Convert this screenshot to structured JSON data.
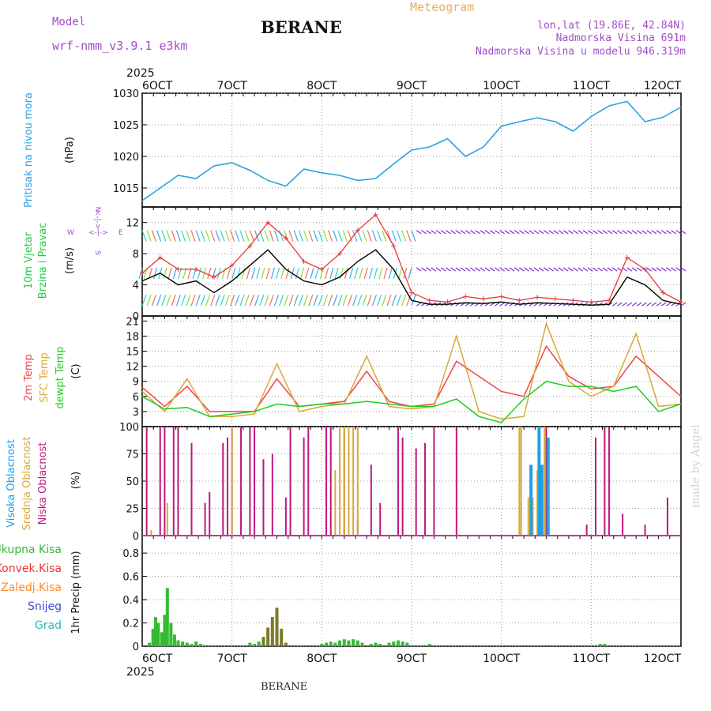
{
  "header": {
    "model_label": "Model",
    "model_name": "wrf-nmm_v3.9.1 e3km",
    "title": "BERANE",
    "product": "Meteogram",
    "lonlat": "lon,lat (19.86E, 42.84N)",
    "altitude": "Nadmorska Visina 691m",
    "model_altitude": "Nadmorska Visina u modelu 946.319m",
    "footer_station": "BERANE",
    "watermark": "made by Angel"
  },
  "colors": {
    "pressure": "#29a3e0",
    "temp2m": "#f04545",
    "sfc": "#d9a838",
    "dew": "#22cc22",
    "high_cloud": "#1fa0e6",
    "mid_cloud": "#d9a838",
    "low_cloud": "#c0167f",
    "precip": "#33bb33",
    "snow_label": "#4444dd",
    "grad_label": "#22bbbb",
    "konv_label": "#ee3333",
    "zaledj_label": "#ff8822",
    "wind_label": "#22cc44",
    "meta": "#a24ccc",
    "product": "#e0b066"
  },
  "time_axis": {
    "year": "2025",
    "labels": [
      "6OCT",
      "7OCT",
      "8OCT",
      "9OCT",
      "10OCT",
      "11OCT",
      "12OCT"
    ]
  },
  "chart_data": [
    {
      "type": "line",
      "panel": "pressure",
      "ylabel_main": "Pritisak na nivou mora",
      "ylabel_unit": "(hPa)",
      "ylim": [
        1012,
        1030
      ],
      "yticks": [
        1015,
        1020,
        1025,
        1030
      ],
      "series": [
        {
          "name": "Pritisak",
          "x": [
            0,
            0.2,
            0.4,
            0.6,
            0.8,
            1.0,
            1.2,
            1.4,
            1.6,
            1.8,
            2.0,
            2.2,
            2.4,
            2.6,
            2.8,
            3.0,
            3.2,
            3.4,
            3.6,
            3.8,
            4.0,
            4.2,
            4.4,
            4.6,
            4.8,
            5.0,
            5.2,
            5.4,
            5.6,
            5.8,
            6.0
          ],
          "values": [
            1013,
            1015,
            1017,
            1016.5,
            1018.5,
            1019,
            1017.8,
            1016.2,
            1015.3,
            1018,
            1017.4,
            1017,
            1016.2,
            1016.5,
            1018.8,
            1021,
            1021.5,
            1022.8,
            1020,
            1021.5,
            1024.8,
            1025.5,
            1026.1,
            1025.5,
            1024,
            1026.3,
            1028,
            1028.7,
            1025.5,
            1026.2,
            1027.8
          ]
        }
      ]
    },
    {
      "type": "line",
      "panel": "wind",
      "ylabel_main_1": "10m Vjetar",
      "ylabel_main_2": "Brzina i Pravac",
      "ylabel_unit": "(m/s)",
      "compass": {
        "n": "N",
        "s": "S",
        "w": "W",
        "e": "E",
        "arrows": "<-|->"
      },
      "ylim": [
        0,
        14
      ],
      "yticks": [
        0,
        4,
        8,
        12
      ],
      "series": [
        {
          "name": "speed",
          "x": [
            0,
            0.2,
            0.4,
            0.6,
            0.8,
            1.0,
            1.2,
            1.4,
            1.6,
            1.8,
            2.0,
            2.2,
            2.4,
            2.6,
            2.8,
            3.0,
            3.2,
            3.4,
            3.6,
            3.8,
            4.0,
            4.2,
            4.4,
            4.6,
            4.8,
            5.0,
            5.2,
            5.4,
            5.6,
            5.8,
            6.0
          ],
          "values": [
            4.5,
            5.5,
            4,
            4.5,
            3,
            4.5,
            6.5,
            8.5,
            6,
            4.5,
            4,
            5,
            7,
            8.5,
            6,
            2,
            1.5,
            1.5,
            1.7,
            1.6,
            1.8,
            1.5,
            1.7,
            1.6,
            1.5,
            1.4,
            1.5,
            5,
            4,
            2,
            1.5
          ]
        },
        {
          "name": "gust",
          "x": [
            0,
            0.2,
            0.4,
            0.6,
            0.8,
            1.0,
            1.2,
            1.4,
            1.6,
            1.8,
            2.0,
            2.2,
            2.4,
            2.6,
            2.8,
            3.0,
            3.2,
            3.4,
            3.6,
            3.8,
            4.0,
            4.2,
            4.4,
            4.6,
            4.8,
            5.0,
            5.2,
            5.4,
            5.6,
            5.8,
            6.0
          ],
          "values": [
            5.5,
            7.5,
            6,
            6,
            5,
            6.5,
            9,
            12,
            10,
            7,
            6,
            8,
            11,
            13,
            9,
            3,
            2,
            1.8,
            2.5,
            2.2,
            2.5,
            2,
            2.4,
            2.2,
            2,
            1.8,
            2,
            7.5,
            6,
            3,
            1.8
          ]
        }
      ]
    },
    {
      "type": "line",
      "panel": "temperature",
      "ylabel_main_1": "2m Temp",
      "ylabel_main_2": "SFC Temp",
      "ylabel_main_3": "dewpt Temp",
      "ylabel_unit": "(C)",
      "ylim": [
        0,
        22
      ],
      "yticks": [
        3,
        6,
        9,
        12,
        15,
        18,
        21
      ],
      "series": [
        {
          "name": "2m Temp",
          "x": [
            0,
            0.25,
            0.5,
            0.75,
            1.0,
            1.25,
            1.5,
            1.75,
            2.0,
            2.25,
            2.5,
            2.75,
            3.0,
            3.25,
            3.5,
            3.75,
            4.0,
            4.25,
            4.5,
            4.75,
            5.0,
            5.25,
            5.5,
            5.75,
            6.0
          ],
          "values": [
            7.8,
            4,
            8,
            3,
            3,
            3,
            9.5,
            4,
            4.5,
            5,
            11,
            5,
            4,
            4.5,
            13,
            10,
            7,
            6,
            16,
            10,
            7.5,
            8,
            14,
            10,
            6
          ]
        },
        {
          "name": "SFC Temp",
          "x": [
            0,
            0.25,
            0.5,
            0.75,
            1.0,
            1.25,
            1.5,
            1.75,
            2.0,
            2.25,
            2.5,
            2.75,
            3.0,
            3.25,
            3.5,
            3.75,
            4.0,
            4.25,
            4.5,
            4.75,
            5.0,
            5.25,
            5.5,
            5.75,
            6.0
          ],
          "values": [
            7,
            3,
            9.5,
            2,
            2,
            2.5,
            12.5,
            3,
            4,
            4.5,
            14,
            4,
            3.5,
            4,
            18,
            3,
            1.5,
            2,
            20.5,
            9,
            6,
            8,
            18.5,
            4,
            4.5
          ]
        },
        {
          "name": "dewpt Temp",
          "x": [
            0,
            0.25,
            0.5,
            0.75,
            1.0,
            1.25,
            1.5,
            1.75,
            2.0,
            2.25,
            2.5,
            2.75,
            3.0,
            3.25,
            3.5,
            3.75,
            4.0,
            4.25,
            4.5,
            4.75,
            5.0,
            5.25,
            5.5,
            5.75,
            6.0
          ],
          "values": [
            6,
            3.5,
            3.8,
            2,
            2.5,
            3,
            4.5,
            4,
            4.5,
            4.5,
            5,
            4.5,
            4,
            4,
            5.5,
            2,
            0.8,
            5.5,
            9,
            8,
            8,
            7,
            8,
            3,
            4.5
          ]
        }
      ]
    },
    {
      "type": "bar",
      "panel": "cloud",
      "ylabel_main_1": "Visoka Oblacnost",
      "ylabel_main_2": "Srednja Oblacnost",
      "ylabel_main_3": "Niska Oblacnost",
      "ylabel_unit": "(%)",
      "ylim": [
        0,
        100
      ],
      "yticks": [
        0,
        25,
        50,
        75,
        100
      ],
      "series": [
        {
          "name": "Niska Oblacnost",
          "x": [
            0.05,
            0.2,
            0.25,
            0.35,
            0.4,
            0.55,
            0.7,
            0.75,
            0.9,
            0.95,
            1.0,
            1.1,
            1.2,
            1.25,
            1.35,
            1.45,
            1.6,
            1.65,
            1.8,
            1.85,
            2.05,
            2.1,
            2.25,
            2.4,
            2.55,
            2.65,
            2.85,
            2.9,
            3.05,
            3.15,
            3.25,
            3.5,
            4.5,
            4.95,
            5.05,
            5.15,
            5.2,
            5.35,
            5.6,
            5.85
          ],
          "values": [
            100,
            100,
            100,
            100,
            100,
            85,
            30,
            40,
            85,
            90,
            100,
            100,
            100,
            100,
            70,
            75,
            35,
            100,
            90,
            100,
            100,
            100,
            100,
            15,
            65,
            30,
            100,
            90,
            80,
            85,
            100,
            100,
            100,
            10,
            90,
            100,
            100,
            20,
            10,
            35
          ]
        },
        {
          "name": "Srednja Oblacnost",
          "x": [
            0.1,
            0.28,
            1.0,
            2.15,
            2.2,
            2.25,
            2.3,
            2.35,
            2.4,
            4.2,
            4.22,
            4.3,
            4.35,
            4.4,
            4.48
          ],
          "values": [
            5,
            30,
            100,
            60,
            100,
            100,
            100,
            100,
            100,
            100,
            100,
            35,
            35,
            60,
            100
          ]
        },
        {
          "name": "Visoka Oblacnost",
          "x": [
            4.33,
            4.42,
            4.45,
            4.52
          ],
          "values": [
            65,
            100,
            65,
            90
          ]
        }
      ]
    },
    {
      "type": "bar",
      "panel": "precip",
      "ylabel_main": "1hr Precip",
      "ylabel_unit": "(mm)",
      "legend": [
        "Ukupna Kisa",
        "Konvek.Kisa",
        "Zaledj.Kisa",
        "Snijeg",
        "Grad"
      ],
      "ylim": [
        0,
        0.95
      ],
      "yticks": [
        0,
        0.2,
        0.4,
        0.6,
        0.8
      ],
      "series": [
        {
          "name": "Ukupna Kisa",
          "x": [
            0.08,
            0.12,
            0.15,
            0.18,
            0.22,
            0.25,
            0.28,
            0.32,
            0.36,
            0.4,
            0.45,
            0.5,
            0.55,
            0.6,
            0.65,
            1.2,
            1.25,
            1.3,
            1.35,
            1.4,
            1.45,
            1.5,
            1.55,
            1.6,
            2.0,
            2.05,
            2.1,
            2.15,
            2.2,
            2.25,
            2.3,
            2.35,
            2.4,
            2.45,
            2.55,
            2.6,
            2.65,
            2.75,
            2.8,
            2.85,
            2.9,
            2.95,
            3.2,
            5.1,
            5.15,
            5.2
          ],
          "values": [
            0.03,
            0.15,
            0.25,
            0.2,
            0.12,
            0.27,
            0.5,
            0.2,
            0.1,
            0.05,
            0.04,
            0.03,
            0.02,
            0.04,
            0.02,
            0.03,
            0.02,
            0.04,
            0.08,
            0.16,
            0.25,
            0.33,
            0.15,
            0.03,
            0.02,
            0.03,
            0.04,
            0.03,
            0.05,
            0.06,
            0.05,
            0.06,
            0.05,
            0.03,
            0.02,
            0.03,
            0.02,
            0.03,
            0.04,
            0.05,
            0.04,
            0.03,
            0.02,
            0.02,
            0.02,
            0.01
          ]
        }
      ]
    }
  ]
}
